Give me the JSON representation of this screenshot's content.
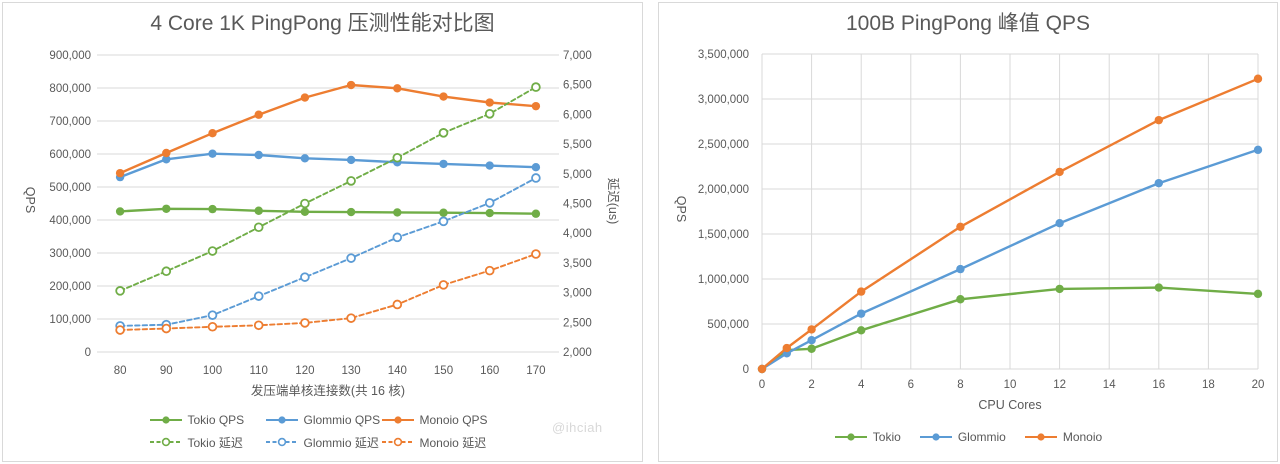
{
  "colors": {
    "tokio_green": "#70AD47",
    "glommio_blue": "#5B9BD5",
    "monoio_orange": "#ED7D31",
    "gridline": "#D9D9D9",
    "axis_text": "#595959",
    "title_text": "#595959",
    "watermark_text": "#D8D8D8",
    "panel_border": "#D9D9D9"
  },
  "watermark": "@ihciah",
  "chart_data": [
    {
      "type": "line",
      "title": "4 Core 1K PingPong 压测性能对比图",
      "xlabel": "发压端单核连接数(共 16 核)",
      "ylabel_left": "QPS",
      "ylabel_right": "延迟(us)",
      "grid": "horizontal",
      "legend_position": "bottom",
      "x_categories": [
        80,
        90,
        100,
        110,
        120,
        130,
        140,
        150,
        160,
        170
      ],
      "y_left": {
        "min": 0,
        "max": 900000,
        "step": 100000
      },
      "y_right": {
        "min": 2000,
        "max": 7000,
        "step": 500
      },
      "legend_rows": [
        [
          0,
          1,
          2
        ],
        [
          3,
          4,
          5
        ]
      ],
      "series": [
        {
          "name": "Tokio QPS",
          "axis": "left",
          "style": "solid",
          "marker": "filled",
          "color_key": "tokio_green",
          "values": [
            426000,
            434000,
            433000,
            428000,
            425000,
            424000,
            423000,
            422000,
            421000,
            419000
          ]
        },
        {
          "name": "Glommio QPS",
          "axis": "left",
          "style": "solid",
          "marker": "filled",
          "color_key": "glommio_blue",
          "values": [
            530000,
            584000,
            601000,
            597000,
            587000,
            582000,
            575000,
            570000,
            565000,
            560000
          ]
        },
        {
          "name": "Monoio QPS",
          "axis": "left",
          "style": "solid",
          "marker": "filled",
          "color_key": "monoio_orange",
          "values": [
            542000,
            603000,
            663000,
            719000,
            771000,
            809000,
            799000,
            774000,
            756000,
            745000
          ]
        },
        {
          "name": "Tokio 延迟",
          "axis": "right",
          "style": "dashed",
          "marker": "open",
          "color_key": "tokio_green",
          "values": [
            3030,
            3360,
            3700,
            4100,
            4500,
            4880,
            5270,
            5690,
            6010,
            6460
          ]
        },
        {
          "name": "Glommio 延迟",
          "axis": "right",
          "style": "dashed",
          "marker": "open",
          "color_key": "glommio_blue",
          "values": [
            2440,
            2460,
            2620,
            2940,
            3260,
            3580,
            3930,
            4200,
            4510,
            4930
          ]
        },
        {
          "name": "Monoio 延迟",
          "axis": "right",
          "style": "dashed",
          "marker": "open",
          "color_key": "monoio_orange",
          "values": [
            2370,
            2395,
            2425,
            2450,
            2490,
            2570,
            2800,
            3130,
            3370,
            3650
          ]
        }
      ]
    },
    {
      "type": "line",
      "title": "100B PingPong 峰值 QPS",
      "xlabel": "CPU Cores",
      "ylabel_left": "QPS",
      "grid": "both",
      "legend_position": "bottom",
      "x": [
        0,
        1,
        2,
        4,
        8,
        12,
        16,
        20
      ],
      "x_axis": {
        "min": 0,
        "max": 20,
        "tick_step": 2
      },
      "y_left": {
        "min": 0,
        "max": 3500000,
        "step": 500000
      },
      "legend_rows": [
        [
          0,
          1,
          2
        ]
      ],
      "series": [
        {
          "name": "Tokio",
          "axis": "left",
          "style": "solid",
          "marker": "filled",
          "color_key": "tokio_green",
          "values": [
            0,
            210000,
            225000,
            430000,
            775000,
            890000,
            905000,
            835000
          ]
        },
        {
          "name": "Glommio",
          "axis": "left",
          "style": "solid",
          "marker": "filled",
          "color_key": "glommio_blue",
          "values": [
            0,
            175000,
            320000,
            615000,
            1110000,
            1620000,
            2065000,
            2435000
          ]
        },
        {
          "name": "Monoio",
          "axis": "left",
          "style": "solid",
          "marker": "filled",
          "color_key": "monoio_orange",
          "values": [
            0,
            233000,
            440000,
            860000,
            1580000,
            2190000,
            2765000,
            3225000
          ]
        }
      ]
    }
  ]
}
